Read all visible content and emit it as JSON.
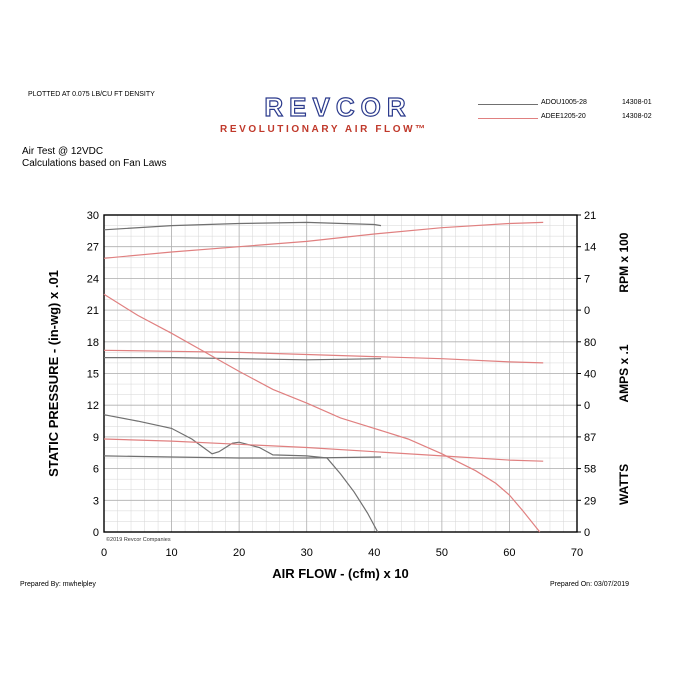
{
  "header": {
    "density_note": "PLOTTED AT 0.075 LB/CU FT DENSITY",
    "brand": "REVCOR",
    "tagline": "REVOLUTIONARY AIR FLOW™",
    "test_note": "Air Test @ 12VDC",
    "calc_note": "Calculations based on Fan Laws"
  },
  "legend": [
    {
      "model": "ADOU1005-28",
      "code": "14308-01",
      "color": "#707070"
    },
    {
      "model": "ADEE1205-20",
      "code": "14308-02",
      "color": "#e08080"
    }
  ],
  "footer": {
    "prepared_by": "Prepared By: mwhelpley",
    "prepared_on": "Prepared On: 03/07/2019",
    "copyright": "©2019 Revcor Companies"
  },
  "colors": {
    "brand_blue": "#2b3a8c",
    "brand_red": "#c0392b",
    "grid": "#b0b0b0"
  },
  "chart_data": {
    "type": "line",
    "xlabel": "AIR FLOW - (cfm) x 10",
    "ylabel": "STATIC PRESSURE - (in-wg) x .01",
    "xlim": [
      0,
      70
    ],
    "ylim": [
      0,
      30
    ],
    "x_ticks": [
      0,
      10,
      20,
      30,
      40,
      50,
      60,
      70
    ],
    "y_ticks": [
      0,
      3,
      6,
      9,
      12,
      15,
      18,
      21,
      24,
      27,
      30
    ],
    "grid": true,
    "legend_position": "top-right",
    "right_axes": [
      {
        "label": "RPM x 100",
        "ticks": [
          0,
          7,
          14,
          21
        ],
        "range": [
          0,
          21
        ],
        "y_span": [
          21,
          30
        ]
      },
      {
        "label": "AMPS x .1",
        "ticks": [
          0,
          40,
          80
        ],
        "range": [
          0,
          80
        ],
        "y_span": [
          12,
          18
        ]
      },
      {
        "label": "WATTS",
        "ticks": [
          0,
          29,
          58,
          87
        ],
        "range": [
          0,
          87
        ],
        "y_span": [
          0,
          9
        ]
      }
    ],
    "series": [
      {
        "name": "ADOU1005-28",
        "metric": "STATIC PRESSURE",
        "color": "#707070",
        "points": [
          [
            0,
            11.1
          ],
          [
            5,
            10.5
          ],
          [
            10,
            9.8
          ],
          [
            13,
            8.8
          ],
          [
            16,
            7.4
          ],
          [
            17,
            7.6
          ],
          [
            19,
            8.4
          ],
          [
            20,
            8.5
          ],
          [
            23,
            8.0
          ],
          [
            25,
            7.3
          ],
          [
            30,
            7.2
          ],
          [
            33,
            7.0
          ],
          [
            35,
            5.5
          ],
          [
            37,
            3.8
          ],
          [
            39,
            1.8
          ],
          [
            40.5,
            0
          ]
        ]
      },
      {
        "name": "ADOU1005-28",
        "metric": "RPM",
        "color": "#707070",
        "points": [
          [
            0,
            28.6
          ],
          [
            10,
            29.0
          ],
          [
            20,
            29.2
          ],
          [
            30,
            29.3
          ],
          [
            40,
            29.1
          ],
          [
            41,
            29.0
          ]
        ]
      },
      {
        "name": "ADOU1005-28",
        "metric": "AMPS",
        "color": "#707070",
        "points": [
          [
            0,
            16.5
          ],
          [
            10,
            16.5
          ],
          [
            20,
            16.4
          ],
          [
            30,
            16.3
          ],
          [
            41,
            16.4
          ]
        ]
      },
      {
        "name": "ADOU1005-28",
        "metric": "WATTS",
        "color": "#707070",
        "points": [
          [
            0,
            7.2
          ],
          [
            10,
            7.1
          ],
          [
            20,
            7.0
          ],
          [
            30,
            7.0
          ],
          [
            41,
            7.1
          ]
        ]
      },
      {
        "name": "ADEE1205-20",
        "metric": "STATIC PRESSURE",
        "color": "#e08080",
        "points": [
          [
            0,
            22.5
          ],
          [
            5,
            20.5
          ],
          [
            10,
            18.8
          ],
          [
            15,
            17.0
          ],
          [
            20,
            15.2
          ],
          [
            25,
            13.5
          ],
          [
            30,
            12.2
          ],
          [
            35,
            10.8
          ],
          [
            40,
            9.8
          ],
          [
            45,
            8.8
          ],
          [
            50,
            7.4
          ],
          [
            55,
            5.8
          ],
          [
            58,
            4.6
          ],
          [
            60,
            3.5
          ],
          [
            62,
            2.0
          ],
          [
            64.5,
            0
          ]
        ]
      },
      {
        "name": "ADEE1205-20",
        "metric": "RPM",
        "color": "#e08080",
        "points": [
          [
            0,
            25.9
          ],
          [
            10,
            26.5
          ],
          [
            20,
            27.0
          ],
          [
            30,
            27.5
          ],
          [
            40,
            28.2
          ],
          [
            50,
            28.8
          ],
          [
            60,
            29.2
          ],
          [
            65,
            29.3
          ]
        ]
      },
      {
        "name": "ADEE1205-20",
        "metric": "AMPS",
        "color": "#e08080",
        "points": [
          [
            0,
            17.2
          ],
          [
            10,
            17.1
          ],
          [
            20,
            17.0
          ],
          [
            30,
            16.8
          ],
          [
            40,
            16.6
          ],
          [
            50,
            16.4
          ],
          [
            60,
            16.1
          ],
          [
            65,
            16.0
          ]
        ]
      },
      {
        "name": "ADEE1205-20",
        "metric": "WATTS",
        "color": "#e08080",
        "points": [
          [
            0,
            8.8
          ],
          [
            10,
            8.6
          ],
          [
            20,
            8.3
          ],
          [
            30,
            8.0
          ],
          [
            40,
            7.6
          ],
          [
            50,
            7.2
          ],
          [
            60,
            6.8
          ],
          [
            65,
            6.7
          ]
        ]
      }
    ]
  }
}
